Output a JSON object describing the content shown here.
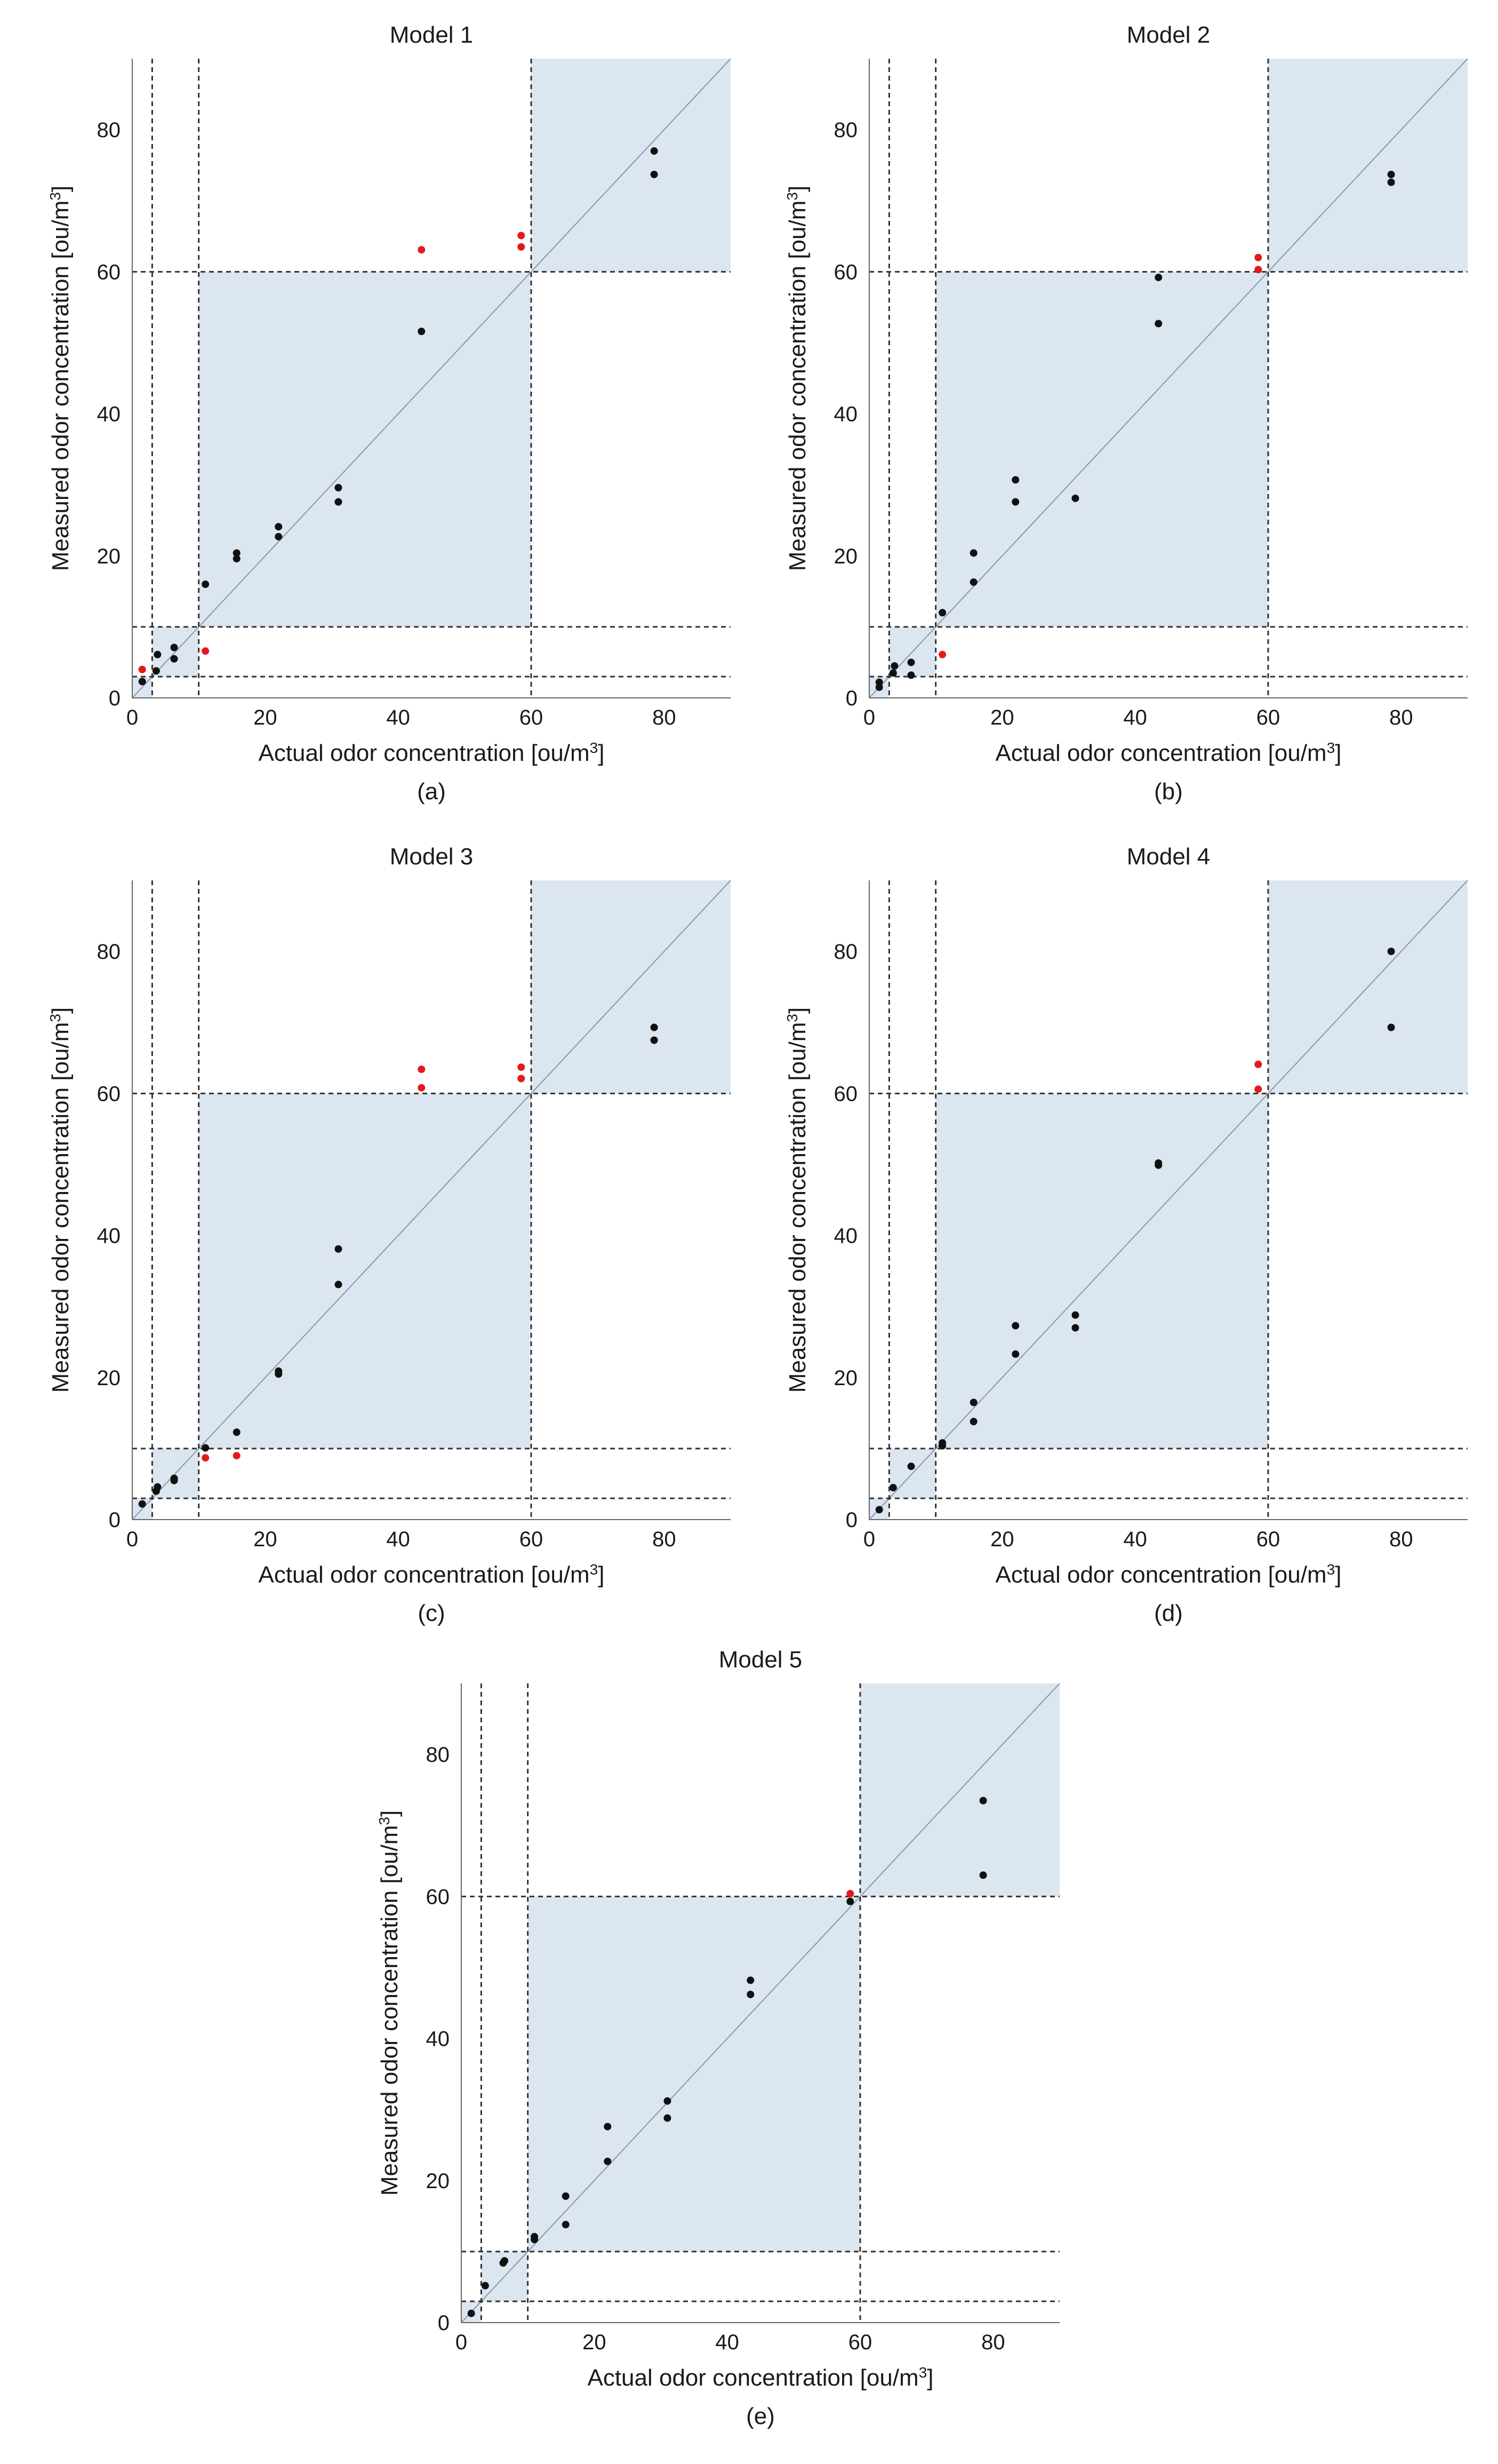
{
  "figure": {
    "x_label_text": "Actual odor concentration [ou/m",
    "y_label_text": "Measured odor concentration [ou/m",
    "unit_superscript": "3",
    "unit_close": "]",
    "x_ticks": [
      0,
      20,
      40,
      60,
      80
    ],
    "y_ticks": [
      0,
      20,
      40,
      60,
      80
    ],
    "colors": {
      "band": "#dce6f1",
      "point_normal": "#111111",
      "point_flagged": "#e31a1c",
      "diagonal": "#8c96a8",
      "threshold_line": "#333333",
      "axis": "#666666"
    }
  },
  "chart_data": [
    {
      "type": "scatter",
      "title": "Model 1",
      "label": "(a)",
      "xlabel": "Actual odor concentration [ou/m³]",
      "ylabel": "Measured odor concentration [ou/m³]",
      "xlim": [
        0,
        90
      ],
      "ylim": [
        0,
        90
      ],
      "thresholds": [
        3,
        10,
        60
      ],
      "band_ranges": [
        [
          0,
          3
        ],
        [
          3,
          10
        ],
        [
          10,
          60
        ],
        [
          60,
          90
        ]
      ],
      "reference_line": "y = x",
      "series": [
        {
          "status": "normal",
          "points": [
            [
              1.5,
              2.3
            ],
            [
              3.6,
              3.8
            ],
            [
              3.8,
              6.1
            ],
            [
              6.3,
              5.5
            ],
            [
              6.3,
              7.1
            ],
            [
              11.0,
              16.0
            ],
            [
              15.7,
              19.6
            ],
            [
              15.7,
              20.4
            ],
            [
              22.0,
              22.7
            ],
            [
              22.0,
              24.1
            ],
            [
              31.0,
              27.6
            ],
            [
              31.0,
              29.6
            ],
            [
              43.5,
              51.6
            ],
            [
              78.5,
              73.7
            ],
            [
              78.5,
              77.0
            ]
          ]
        },
        {
          "status": "flagged",
          "points": [
            [
              1.5,
              4.0
            ],
            [
              11.0,
              6.6
            ],
            [
              43.5,
              63.1
            ],
            [
              58.5,
              63.5
            ],
            [
              58.5,
              65.1
            ]
          ]
        }
      ]
    },
    {
      "type": "scatter",
      "title": "Model 2",
      "label": "(b)",
      "xlabel": "Actual odor concentration [ou/m³]",
      "ylabel": "Measured odor concentration [ou/m³]",
      "xlim": [
        0,
        90
      ],
      "ylim": [
        0,
        90
      ],
      "thresholds": [
        3,
        10,
        60
      ],
      "band_ranges": [
        [
          0,
          3
        ],
        [
          3,
          10
        ],
        [
          10,
          60
        ],
        [
          60,
          90
        ]
      ],
      "reference_line": "y = x",
      "series": [
        {
          "status": "normal",
          "points": [
            [
              1.5,
              1.5
            ],
            [
              1.5,
              2.2
            ],
            [
              3.6,
              3.5
            ],
            [
              3.8,
              4.5
            ],
            [
              6.3,
              3.2
            ],
            [
              6.3,
              5.0
            ],
            [
              11.0,
              12.0
            ],
            [
              15.7,
              16.3
            ],
            [
              15.7,
              20.4
            ],
            [
              22.0,
              27.6
            ],
            [
              22.0,
              30.7
            ],
            [
              31.0,
              28.1
            ],
            [
              43.5,
              52.7
            ],
            [
              43.5,
              59.2
            ],
            [
              78.5,
              72.6
            ],
            [
              78.5,
              73.7
            ]
          ]
        },
        {
          "status": "flagged",
          "points": [
            [
              11.0,
              6.1
            ],
            [
              58.5,
              60.3
            ],
            [
              58.5,
              62.0
            ]
          ]
        }
      ]
    },
    {
      "type": "scatter",
      "title": "Model 3",
      "label": "(c)",
      "xlabel": "Actual odor concentration [ou/m³]",
      "ylabel": "Measured odor concentration [ou/m³]",
      "xlim": [
        0,
        90
      ],
      "ylim": [
        0,
        90
      ],
      "thresholds": [
        3,
        10,
        60
      ],
      "band_ranges": [
        [
          0,
          3
        ],
        [
          3,
          10
        ],
        [
          10,
          60
        ],
        [
          60,
          90
        ]
      ],
      "reference_line": "y = x",
      "series": [
        {
          "status": "normal",
          "points": [
            [
              1.5,
              2.2
            ],
            [
              3.6,
              4.0
            ],
            [
              3.8,
              4.6
            ],
            [
              6.3,
              5.5
            ],
            [
              6.3,
              5.8
            ],
            [
              11.0,
              10.1
            ],
            [
              15.7,
              12.3
            ],
            [
              22.0,
              20.5
            ],
            [
              22.0,
              20.9
            ],
            [
              31.0,
              33.1
            ],
            [
              31.0,
              38.1
            ],
            [
              78.5,
              67.5
            ],
            [
              78.5,
              69.3
            ]
          ]
        },
        {
          "status": "flagged",
          "points": [
            [
              11.0,
              8.7
            ],
            [
              15.7,
              9.0
            ],
            [
              43.5,
              60.8
            ],
            [
              43.5,
              63.4
            ],
            [
              58.5,
              62.1
            ],
            [
              58.5,
              63.7
            ]
          ]
        }
      ]
    },
    {
      "type": "scatter",
      "title": "Model 4",
      "label": "(d)",
      "xlabel": "Actual odor concentration [ou/m³]",
      "ylabel": "Measured odor concentration [ou/m³]",
      "xlim": [
        0,
        90
      ],
      "ylim": [
        0,
        90
      ],
      "thresholds": [
        3,
        10,
        60
      ],
      "band_ranges": [
        [
          0,
          3
        ],
        [
          3,
          10
        ],
        [
          10,
          60
        ],
        [
          60,
          90
        ]
      ],
      "reference_line": "y = x",
      "series": [
        {
          "status": "normal",
          "points": [
            [
              1.5,
              1.4
            ],
            [
              3.6,
              4.5
            ],
            [
              6.3,
              7.5
            ],
            [
              11.0,
              10.4
            ],
            [
              11.0,
              10.8
            ],
            [
              15.7,
              13.8
            ],
            [
              15.7,
              16.5
            ],
            [
              22.0,
              23.3
            ],
            [
              22.0,
              27.3
            ],
            [
              31.0,
              27.0
            ],
            [
              31.0,
              28.8
            ],
            [
              43.5,
              49.9
            ],
            [
              43.5,
              50.2
            ],
            [
              78.5,
              69.3
            ],
            [
              78.5,
              80.0
            ]
          ]
        },
        {
          "status": "flagged",
          "points": [
            [
              58.5,
              60.6
            ],
            [
              58.5,
              64.1
            ]
          ]
        }
      ]
    },
    {
      "type": "scatter",
      "title": "Model 5",
      "label": "(e)",
      "xlabel": "Actual odor concentration [ou/m³]",
      "ylabel": "Measured odor concentration [ou/m³]",
      "xlim": [
        0,
        90
      ],
      "ylim": [
        0,
        90
      ],
      "thresholds": [
        3,
        10,
        60
      ],
      "band_ranges": [
        [
          0,
          3
        ],
        [
          3,
          10
        ],
        [
          10,
          60
        ],
        [
          60,
          90
        ]
      ],
      "reference_line": "y = x",
      "series": [
        {
          "status": "normal",
          "points": [
            [
              1.5,
              1.3
            ],
            [
              3.6,
              5.2
            ],
            [
              6.3,
              8.4
            ],
            [
              6.5,
              8.7
            ],
            [
              11.0,
              11.7
            ],
            [
              11.0,
              12.1
            ],
            [
              15.7,
              13.8
            ],
            [
              15.7,
              17.8
            ],
            [
              22.0,
              22.7
            ],
            [
              22.0,
              27.6
            ],
            [
              31.0,
              28.8
            ],
            [
              31.0,
              31.2
            ],
            [
              43.5,
              46.2
            ],
            [
              43.5,
              48.2
            ],
            [
              58.5,
              59.3
            ],
            [
              78.5,
              63.0
            ],
            [
              78.5,
              73.5
            ]
          ]
        },
        {
          "status": "flagged",
          "points": [
            [
              58.5,
              60.4
            ]
          ]
        }
      ]
    }
  ]
}
